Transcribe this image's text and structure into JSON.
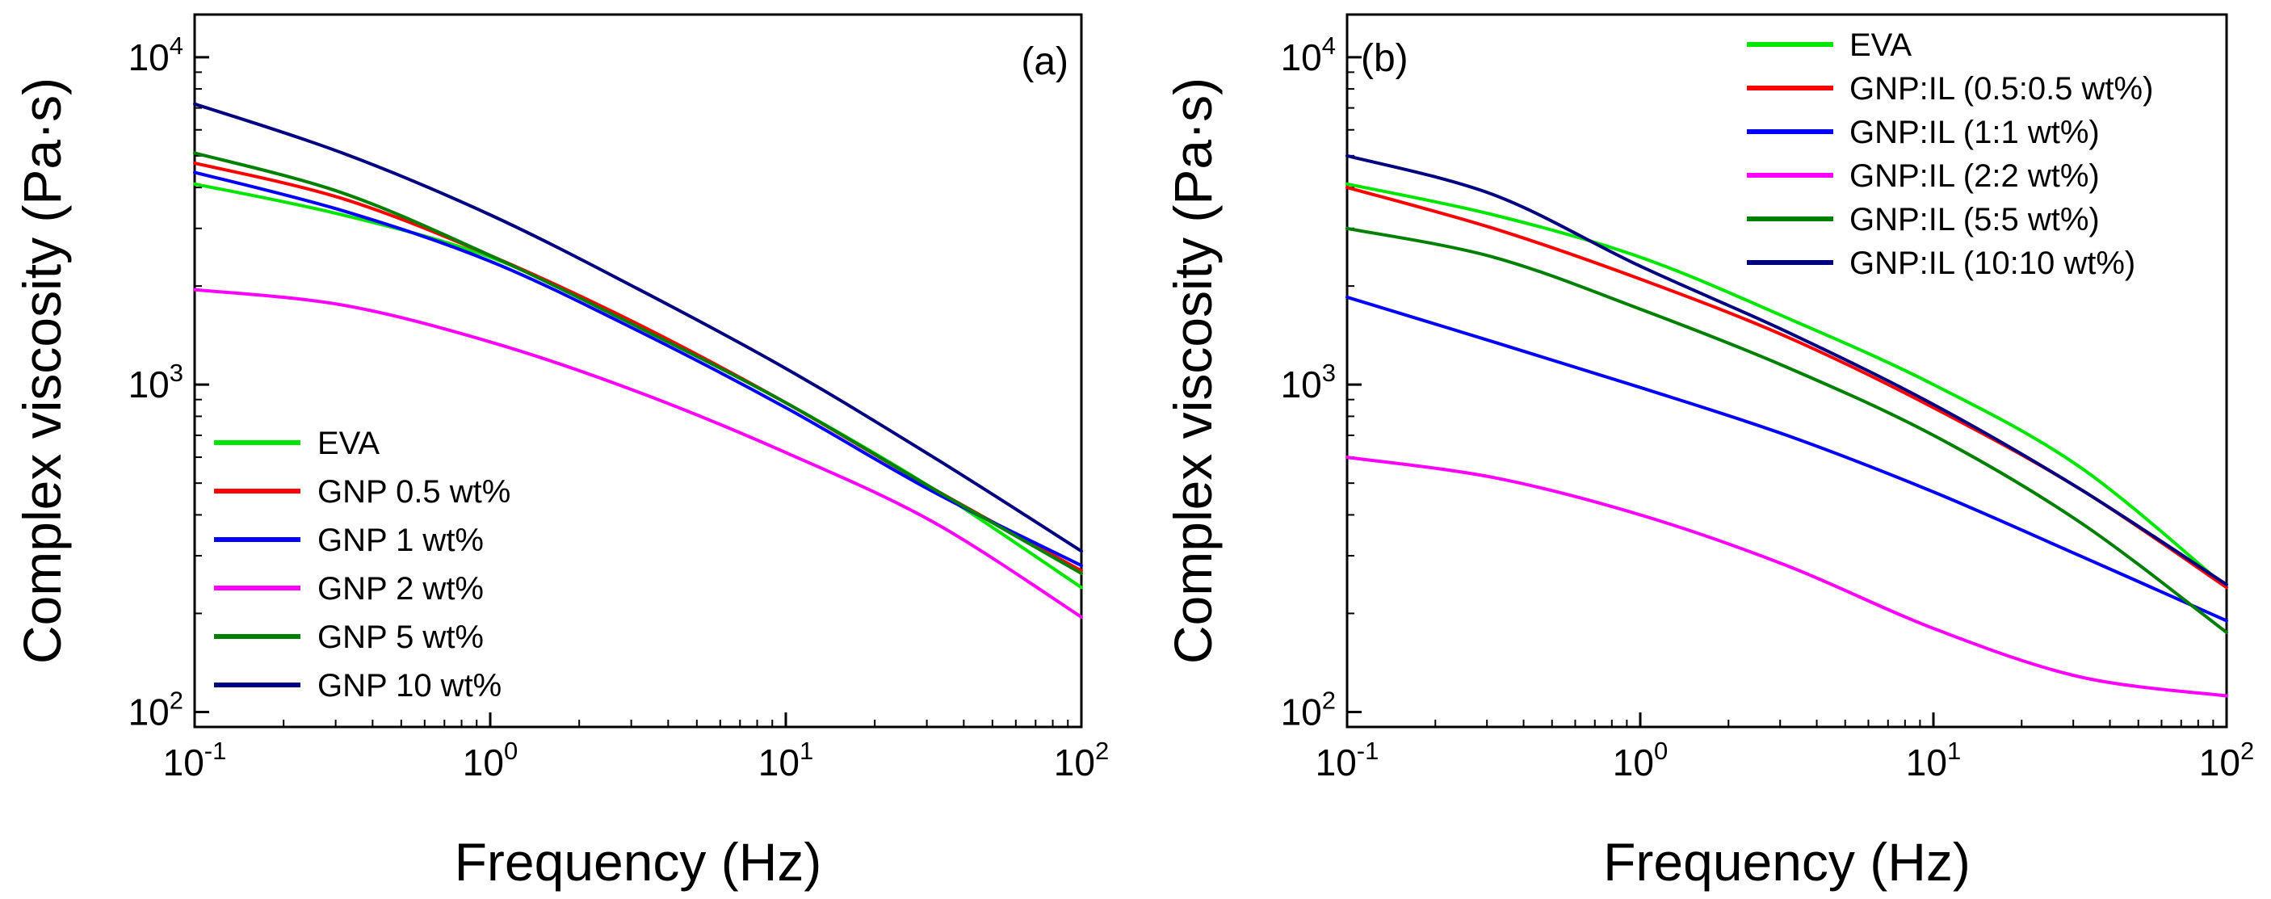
{
  "chart_data": [
    {
      "type": "line",
      "panel_label": "(a)",
      "xlabel": "Frequency (Hz)",
      "ylabel": "Complex viscosity (Pa·s)",
      "xscale": "log",
      "yscale": "log",
      "xlim": [
        0.1,
        100
      ],
      "ylim": [
        90,
        13500
      ],
      "x_tick_labels": [
        {
          "value": 0.1,
          "base": "10",
          "exp": "-1"
        },
        {
          "value": 1,
          "base": "10",
          "exp": "0"
        },
        {
          "value": 10,
          "base": "10",
          "exp": "1"
        },
        {
          "value": 100,
          "base": "10",
          "exp": "2"
        }
      ],
      "y_tick_labels": [
        {
          "value": 100,
          "base": "10",
          "exp": "2"
        },
        {
          "value": 1000,
          "base": "10",
          "exp": "3"
        },
        {
          "value": 10000,
          "base": "10",
          "exp": "4"
        }
      ],
      "legend_position": "bottom-left",
      "x": [
        0.1,
        0.316,
        1,
        3.16,
        10,
        31.6,
        100
      ],
      "series": [
        {
          "name": "EVA",
          "color": "#00e600",
          "values": [
            4100,
            3300,
            2450,
            1520,
            880,
            480,
            240
          ]
        },
        {
          "name": "GNP 0.5 wt%",
          "color": "#ff0000",
          "values": [
            4750,
            3700,
            2480,
            1530,
            880,
            480,
            270
          ]
        },
        {
          "name": "GNP 1 wt%",
          "color": "#0000ff",
          "values": [
            4450,
            3400,
            2380,
            1460,
            850,
            470,
            280
          ]
        },
        {
          "name": "GNP 2 wt%",
          "color": "#ff00ff",
          "values": [
            1950,
            1750,
            1350,
            950,
            620,
            380,
            195
          ]
        },
        {
          "name": "GNP 5 wt%",
          "color": "#008000",
          "values": [
            5100,
            3850,
            2480,
            1500,
            880,
            480,
            265
          ]
        },
        {
          "name": "GNP 10 wt%",
          "color": "#000080",
          "values": [
            7200,
            5100,
            3300,
            1960,
            1120,
            600,
            310
          ]
        }
      ]
    },
    {
      "type": "line",
      "panel_label": "(b)",
      "xlabel": "Frequency (Hz)",
      "ylabel": "Complex viscosity (Pa·s)",
      "xscale": "log",
      "yscale": "log",
      "xlim": [
        0.1,
        100
      ],
      "ylim": [
        90,
        13500
      ],
      "x_tick_labels": [
        {
          "value": 0.1,
          "base": "10",
          "exp": "-1"
        },
        {
          "value": 1,
          "base": "10",
          "exp": "0"
        },
        {
          "value": 10,
          "base": "10",
          "exp": "1"
        },
        {
          "value": 100,
          "base": "10",
          "exp": "2"
        }
      ],
      "y_tick_labels": [
        {
          "value": 100,
          "base": "10",
          "exp": "2"
        },
        {
          "value": 1000,
          "base": "10",
          "exp": "3"
        },
        {
          "value": 10000,
          "base": "10",
          "exp": "4"
        }
      ],
      "legend_position": "top-right",
      "x": [
        0.1,
        0.316,
        1,
        3.16,
        10,
        31.6,
        100
      ],
      "series": [
        {
          "name": "EVA",
          "color": "#00e600",
          "values": [
            4100,
            3300,
            2450,
            1600,
            1000,
            560,
            240
          ]
        },
        {
          "name": "GNP:IL (0.5:0.5 wt%)",
          "color": "#ff0000",
          "values": [
            4000,
            3000,
            2100,
            1400,
            850,
            480,
            240
          ]
        },
        {
          "name": "GNP:IL (1:1 wt%)",
          "color": "#0000ff",
          "values": [
            1850,
            1350,
            980,
            700,
            470,
            300,
            190
          ]
        },
        {
          "name": "GNP:IL (2:2 wt%)",
          "color": "#ff00ff",
          "values": [
            600,
            520,
            400,
            280,
            180,
            128,
            112
          ]
        },
        {
          "name": "GNP:IL (5:5 wt%)",
          "color": "#008000",
          "values": [
            3000,
            2450,
            1700,
            1130,
            700,
            380,
            175
          ]
        },
        {
          "name": "GNP:IL (10:10 wt%)",
          "color": "#000080",
          "values": [
            5000,
            3800,
            2300,
            1450,
            870,
            480,
            245
          ]
        }
      ]
    }
  ]
}
